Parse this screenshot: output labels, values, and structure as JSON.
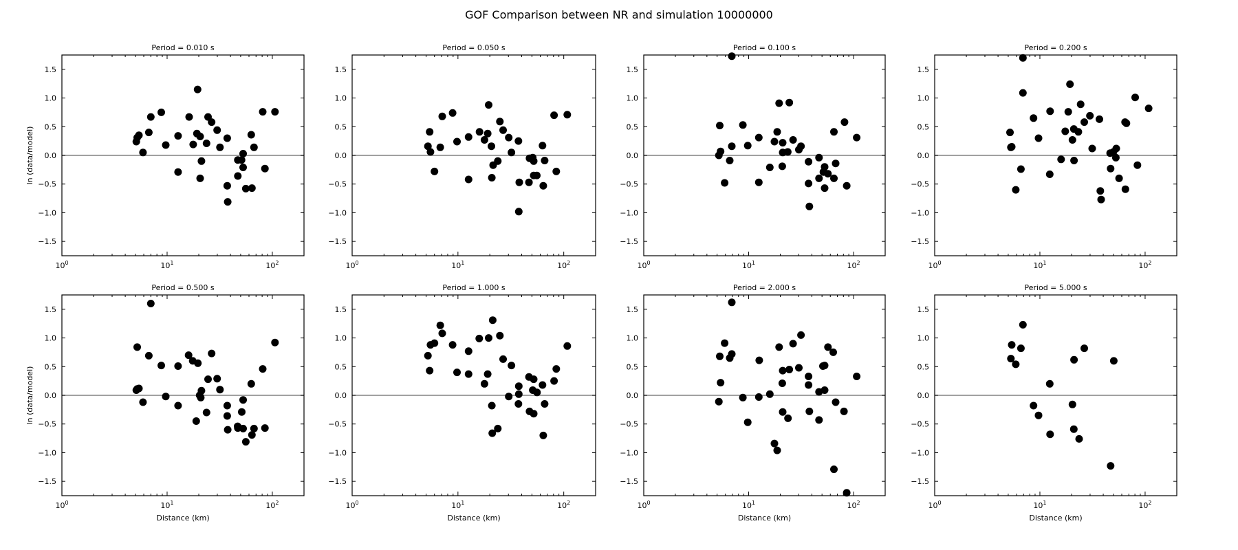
{
  "figure_title": "GOF Comparison between NR and simulation 10000000",
  "colors": {
    "marker": "#000000",
    "zero_line": "#808080",
    "axes": "#000000"
  },
  "chart_data": [
    {
      "type": "scatter",
      "title": "Period = 0.010 s",
      "xlabel": "",
      "ylabel": "ln (data/model)",
      "xscale": "log",
      "xlim": [
        1,
        200
      ],
      "ylim": [
        -1.75,
        1.75
      ],
      "points": [
        [
          5.1,
          0.24
        ],
        [
          5.2,
          0.31
        ],
        [
          5.4,
          0.35
        ],
        [
          5.9,
          0.05
        ],
        [
          6.7,
          0.4
        ],
        [
          7.0,
          0.67
        ],
        [
          8.8,
          0.75
        ],
        [
          9.7,
          0.18
        ],
        [
          12.7,
          0.34
        ],
        [
          12.7,
          -0.29
        ],
        [
          16.2,
          0.67
        ],
        [
          17.7,
          0.19
        ],
        [
          19.2,
          0.38
        ],
        [
          19.5,
          1.15
        ],
        [
          20.6,
          0.33
        ],
        [
          20.6,
          -0.4
        ],
        [
          21.2,
          -0.1
        ],
        [
          23.7,
          0.21
        ],
        [
          24.5,
          0.67
        ],
        [
          26.5,
          0.58
        ],
        [
          29.9,
          0.44
        ],
        [
          31.8,
          0.14
        ],
        [
          37.3,
          0.3
        ],
        [
          37.3,
          -0.53
        ],
        [
          37.7,
          -0.81
        ],
        [
          47,
          -0.08
        ],
        [
          47,
          -0.36
        ],
        [
          51,
          -0.08
        ],
        [
          52.8,
          0.03
        ],
        [
          52.8,
          -0.21
        ],
        [
          56,
          -0.58
        ],
        [
          63,
          0.36
        ],
        [
          64,
          -0.57
        ],
        [
          67,
          0.14
        ],
        [
          81,
          0.76
        ],
        [
          85,
          -0.23
        ],
        [
          106,
          0.76
        ]
      ]
    },
    {
      "type": "scatter",
      "title": "Period = 0.050 s",
      "xlabel": "",
      "ylabel": "",
      "xscale": "log",
      "xlim": [
        1,
        200
      ],
      "ylim": [
        -1.75,
        1.75
      ],
      "points": [
        [
          5.2,
          0.16
        ],
        [
          5.4,
          0.41
        ],
        [
          5.5,
          0.06
        ],
        [
          6.0,
          -0.28
        ],
        [
          6.8,
          0.14
        ],
        [
          7.1,
          0.68
        ],
        [
          8.9,
          0.74
        ],
        [
          9.8,
          0.24
        ],
        [
          12.6,
          0.32
        ],
        [
          12.6,
          -0.42
        ],
        [
          16.0,
          0.41
        ],
        [
          17.8,
          0.27
        ],
        [
          19.1,
          0.38
        ],
        [
          19.5,
          0.88
        ],
        [
          20.7,
          0.16
        ],
        [
          20.9,
          -0.39
        ],
        [
          21.5,
          -0.17
        ],
        [
          23.8,
          -0.1
        ],
        [
          24.9,
          0.59
        ],
        [
          26.7,
          0.44
        ],
        [
          30.2,
          0.31
        ],
        [
          32,
          0.05
        ],
        [
          37.3,
          0.25
        ],
        [
          38,
          -0.47
        ],
        [
          37.6,
          -0.98
        ],
        [
          46.9,
          -0.47
        ],
        [
          47.5,
          -0.05
        ],
        [
          50.9,
          -0.04
        ],
        [
          52,
          -0.1
        ],
        [
          52,
          -0.35
        ],
        [
          55.6,
          -0.35
        ],
        [
          63,
          0.17
        ],
        [
          64,
          -0.53
        ],
        [
          66,
          -0.09
        ],
        [
          81,
          0.7
        ],
        [
          85,
          -0.28
        ],
        [
          108,
          0.71
        ]
      ]
    },
    {
      "type": "scatter",
      "title": "Period = 0.100 s",
      "xlabel": "",
      "ylabel": "",
      "xscale": "log",
      "xlim": [
        1,
        200
      ],
      "ylim": [
        -1.75,
        1.75
      ],
      "points": [
        [
          5.2,
          0.0
        ],
        [
          5.4,
          0.07
        ],
        [
          5.3,
          0.52
        ],
        [
          5.9,
          -0.48
        ],
        [
          6.6,
          -0.09
        ],
        [
          6.9,
          0.16
        ],
        [
          6.9,
          1.73
        ],
        [
          8.8,
          0.53
        ],
        [
          9.8,
          0.17
        ],
        [
          12.5,
          0.31
        ],
        [
          12.5,
          -0.47
        ],
        [
          15.9,
          -0.21
        ],
        [
          17.6,
          0.24
        ],
        [
          18.7,
          0.41
        ],
        [
          19.5,
          0.91
        ],
        [
          20.9,
          -0.19
        ],
        [
          21.1,
          0.22
        ],
        [
          21.1,
          0.05
        ],
        [
          23.6,
          0.06
        ],
        [
          24.4,
          0.92
        ],
        [
          26.5,
          0.27
        ],
        [
          30.1,
          0.1
        ],
        [
          31.5,
          0.16
        ],
        [
          37.2,
          -0.11
        ],
        [
          37.2,
          -0.49
        ],
        [
          37.9,
          -0.89
        ],
        [
          46.8,
          -0.04
        ],
        [
          46.8,
          -0.4
        ],
        [
          51.6,
          -0.29
        ],
        [
          53,
          -0.2
        ],
        [
          53,
          -0.57
        ],
        [
          57,
          -0.32
        ],
        [
          65,
          0.41
        ],
        [
          65,
          -0.4
        ],
        [
          67.5,
          -0.14
        ],
        [
          82,
          0.58
        ],
        [
          86,
          -0.53
        ],
        [
          107,
          0.31
        ]
      ]
    },
    {
      "type": "scatter",
      "title": "Period = 0.200 s",
      "xlabel": "",
      "ylabel": "",
      "xscale": "log",
      "xlim": [
        1,
        200
      ],
      "ylim": [
        -1.75,
        1.75
      ],
      "points": [
        [
          5.2,
          0.4
        ],
        [
          5.3,
          0.14
        ],
        [
          5.4,
          0.15
        ],
        [
          5.9,
          -0.6
        ],
        [
          6.6,
          -0.24
        ],
        [
          6.9,
          1.7
        ],
        [
          6.9,
          1.09
        ],
        [
          8.7,
          0.65
        ],
        [
          9.7,
          0.3
        ],
        [
          12.4,
          -0.33
        ],
        [
          12.5,
          0.77
        ],
        [
          15.9,
          -0.07
        ],
        [
          17.4,
          0.42
        ],
        [
          18.6,
          0.76
        ],
        [
          19.3,
          1.24
        ],
        [
          20.4,
          0.27
        ],
        [
          21,
          0.46
        ],
        [
          21.1,
          -0.09
        ],
        [
          23.2,
          0.41
        ],
        [
          24.4,
          0.89
        ],
        [
          26.4,
          0.58
        ],
        [
          29.9,
          0.69
        ],
        [
          31.4,
          0.12
        ],
        [
          36.8,
          0.63
        ],
        [
          37.5,
          -0.62
        ],
        [
          38.2,
          -0.77
        ],
        [
          46.5,
          0.04
        ],
        [
          47,
          -0.23
        ],
        [
          50,
          0.06
        ],
        [
          52.7,
          -0.04
        ],
        [
          53.2,
          0.12
        ],
        [
          56.6,
          -0.4
        ],
        [
          64.5,
          0.58
        ],
        [
          65,
          -0.59
        ],
        [
          66.5,
          0.56
        ],
        [
          80.4,
          1.01
        ],
        [
          84.6,
          -0.17
        ],
        [
          108,
          0.82
        ]
      ]
    },
    {
      "type": "scatter",
      "title": "Period = 0.500 s",
      "xlabel": "Distance (km)",
      "ylabel": "ln (data/model)",
      "xscale": "log",
      "xlim": [
        1,
        200
      ],
      "ylim": [
        -1.75,
        1.75
      ],
      "points": [
        [
          5.1,
          0.09
        ],
        [
          5.2,
          0.11
        ],
        [
          5.4,
          0.12
        ],
        [
          5.2,
          0.84
        ],
        [
          5.9,
          -0.12
        ],
        [
          6.7,
          0.69
        ],
        [
          7.0,
          1.6
        ],
        [
          8.8,
          0.52
        ],
        [
          9.7,
          -0.02
        ],
        [
          12.7,
          0.51
        ],
        [
          12.7,
          -0.18
        ],
        [
          16.0,
          0.7
        ],
        [
          17.5,
          0.6
        ],
        [
          18.9,
          -0.45
        ],
        [
          19.6,
          0.56
        ],
        [
          20.4,
          0.0
        ],
        [
          20.9,
          -0.04
        ],
        [
          21.2,
          0.08
        ],
        [
          23.7,
          -0.3
        ],
        [
          24.5,
          0.28
        ],
        [
          26.5,
          0.73
        ],
        [
          29.9,
          0.29
        ],
        [
          31.8,
          0.1
        ],
        [
          37.3,
          -0.18
        ],
        [
          37.3,
          -0.36
        ],
        [
          37.7,
          -0.6
        ],
        [
          46.8,
          -0.54
        ],
        [
          47,
          -0.57
        ],
        [
          51.2,
          -0.29
        ],
        [
          52.8,
          -0.08
        ],
        [
          52.8,
          -0.58
        ],
        [
          56,
          -0.81
        ],
        [
          63,
          0.2
        ],
        [
          64,
          -0.69
        ],
        [
          67,
          -0.58
        ],
        [
          81,
          0.46
        ],
        [
          85,
          -0.57
        ],
        [
          106,
          0.92
        ]
      ]
    },
    {
      "type": "scatter",
      "title": "Period = 1.000 s",
      "xlabel": "Distance (km)",
      "ylabel": "",
      "xscale": "log",
      "xlim": [
        1,
        200
      ],
      "ylim": [
        -1.75,
        1.75
      ],
      "points": [
        [
          5.2,
          0.69
        ],
        [
          5.4,
          0.43
        ],
        [
          5.5,
          0.88
        ],
        [
          6.0,
          0.91
        ],
        [
          6.8,
          1.22
        ],
        [
          7.1,
          1.08
        ],
        [
          8.9,
          0.88
        ],
        [
          9.8,
          0.4
        ],
        [
          12.6,
          0.37
        ],
        [
          12.6,
          0.77
        ],
        [
          15.9,
          0.99
        ],
        [
          17.8,
          0.2
        ],
        [
          19.1,
          0.37
        ],
        [
          19.5,
          1.0
        ],
        [
          20.9,
          -0.18
        ],
        [
          21.1,
          -0.66
        ],
        [
          21.3,
          1.31
        ],
        [
          23.8,
          -0.58
        ],
        [
          24.9,
          1.04
        ],
        [
          26.7,
          0.63
        ],
        [
          30.2,
          -0.02
        ],
        [
          32,
          0.52
        ],
        [
          37.6,
          0.16
        ],
        [
          37.6,
          0.02
        ],
        [
          37.3,
          -0.15
        ],
        [
          46.9,
          0.32
        ],
        [
          47.5,
          -0.28
        ],
        [
          50.9,
          0.09
        ],
        [
          52,
          0.28
        ],
        [
          52,
          -0.32
        ],
        [
          55.9,
          0.05
        ],
        [
          63,
          0.18
        ],
        [
          64,
          -0.7
        ],
        [
          66,
          -0.15
        ],
        [
          81,
          0.25
        ],
        [
          85,
          0.46
        ],
        [
          108,
          0.86
        ]
      ]
    },
    {
      "type": "scatter",
      "title": "Period = 2.000 s",
      "xlabel": "Distance (km)",
      "ylabel": "",
      "xscale": "log",
      "xlim": [
        1,
        200
      ],
      "ylim": [
        -1.75,
        1.75
      ],
      "points": [
        [
          5.2,
          -0.11
        ],
        [
          5.3,
          0.68
        ],
        [
          5.4,
          0.22
        ],
        [
          5.9,
          0.91
        ],
        [
          6.6,
          0.65
        ],
        [
          6.9,
          0.72
        ],
        [
          6.9,
          1.62
        ],
        [
          8.8,
          -0.04
        ],
        [
          9.8,
          -0.47
        ],
        [
          12.5,
          -0.03
        ],
        [
          12.6,
          0.61
        ],
        [
          15.9,
          0.02
        ],
        [
          17.6,
          -0.84
        ],
        [
          18.7,
          -0.96
        ],
        [
          19.5,
          0.84
        ],
        [
          20.9,
          0.21
        ],
        [
          21.1,
          0.43
        ],
        [
          21.1,
          -0.29
        ],
        [
          23.7,
          -0.4
        ],
        [
          24.4,
          0.45
        ],
        [
          26.5,
          0.9
        ],
        [
          30.1,
          0.48
        ],
        [
          31.5,
          1.05
        ],
        [
          37.2,
          0.33
        ],
        [
          37.2,
          0.18
        ],
        [
          37.9,
          -0.28
        ],
        [
          46.8,
          0.06
        ],
        [
          46.8,
          -0.43
        ],
        [
          51,
          0.51
        ],
        [
          53,
          0.52
        ],
        [
          53,
          0.09
        ],
        [
          57,
          0.84
        ],
        [
          64,
          0.75
        ],
        [
          65,
          -1.29
        ],
        [
          67.5,
          -0.12
        ],
        [
          81,
          -0.28
        ],
        [
          86,
          -1.7
        ],
        [
          107,
          0.33
        ]
      ]
    },
    {
      "type": "scatter",
      "title": "Period = 5.000 s",
      "xlabel": "Distance (km)",
      "ylabel": "",
      "xscale": "log",
      "xlim": [
        1,
        200
      ],
      "ylim": [
        -1.75,
        1.75
      ],
      "points": [
        [
          5.3,
          0.64
        ],
        [
          5.4,
          0.88
        ],
        [
          5.9,
          0.54
        ],
        [
          6.6,
          0.82
        ],
        [
          6.9,
          1.23
        ],
        [
          8.7,
          -0.18
        ],
        [
          9.7,
          -0.35
        ],
        [
          12.4,
          0.2
        ],
        [
          12.5,
          -0.68
        ],
        [
          20.4,
          -0.16
        ],
        [
          21,
          -0.59
        ],
        [
          21.1,
          0.62
        ],
        [
          23.6,
          -0.76
        ],
        [
          26.4,
          0.82
        ],
        [
          47,
          -1.23
        ],
        [
          50.4,
          0.6
        ]
      ]
    }
  ],
  "axes": {
    "y_ticks": [
      "1.5",
      "1.0",
      "0.5",
      "0.0",
      "−0.5",
      "−1.0",
      "−1.5"
    ],
    "y_tick_values": [
      1.5,
      1.0,
      0.5,
      0.0,
      -0.5,
      -1.0,
      -1.5
    ],
    "x_ticks": [
      {
        "base": "10",
        "exp": "0",
        "value": 1
      },
      {
        "base": "10",
        "exp": "1",
        "value": 10
      },
      {
        "base": "10",
        "exp": "2",
        "value": 100
      }
    ],
    "reference_line": 0
  }
}
